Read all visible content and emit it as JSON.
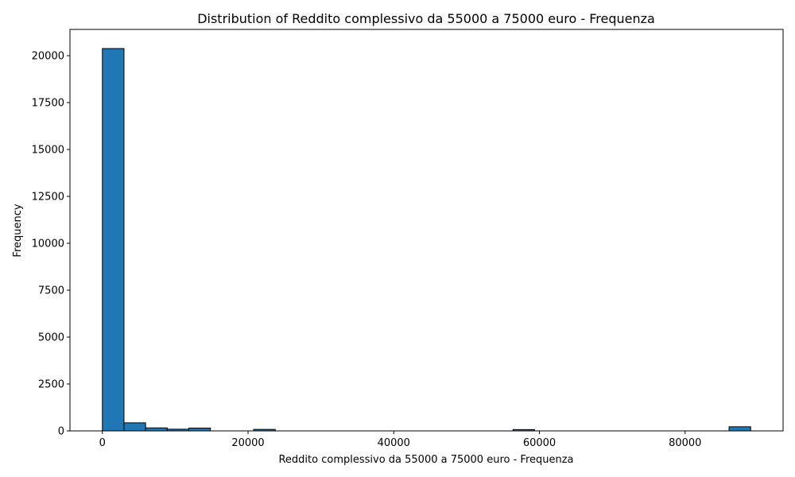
{
  "chart_data": {
    "type": "bar",
    "subtype": "histogram",
    "title": "Distribution of Reddito complessivo da 55000 a 75000 euro - Frequenza",
    "xlabel": "Reddito complessivo da 55000 a 75000 euro - Frequenza",
    "ylabel": "Frequency",
    "xlim": [
      -4450,
      93450
    ],
    "ylim": [
      0,
      21400
    ],
    "xticks": [
      0,
      20000,
      40000,
      60000,
      80000
    ],
    "yticks": [
      0,
      2500,
      5000,
      7500,
      10000,
      12500,
      15000,
      17500,
      20000
    ],
    "bin_start": 0,
    "bin_width": 2966.7,
    "bins": 30,
    "values": [
      20380,
      430,
      160,
      90,
      150,
      0,
      0,
      80,
      0,
      0,
      0,
      0,
      0,
      0,
      0,
      0,
      0,
      0,
      0,
      70,
      0,
      0,
      0,
      0,
      0,
      0,
      0,
      0,
      0,
      220
    ],
    "bar_color": "#1f77b4",
    "edge_color": "#000000",
    "grid": false,
    "legend": "none"
  }
}
